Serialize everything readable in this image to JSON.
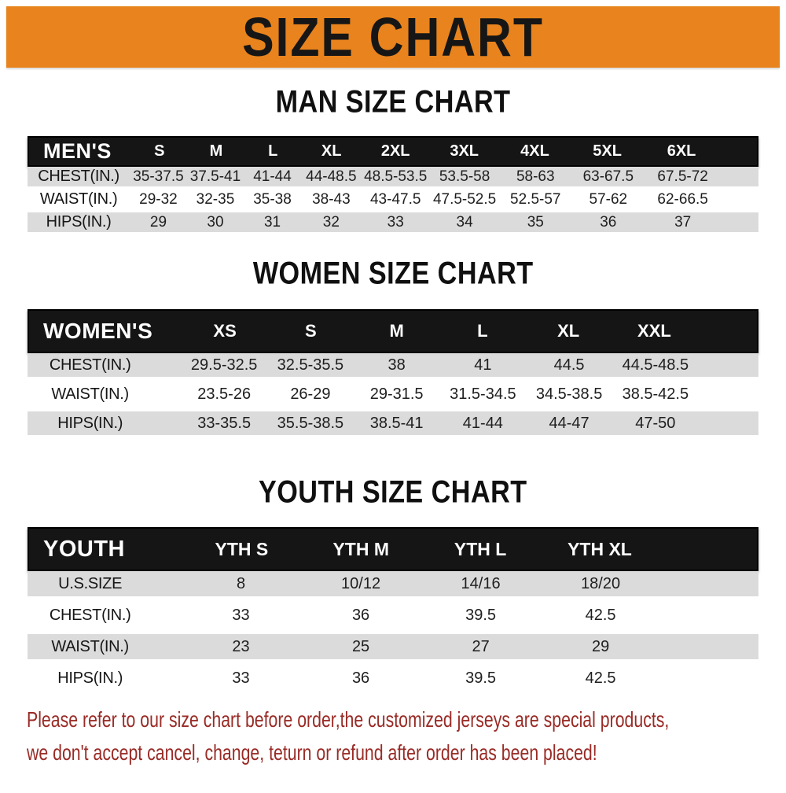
{
  "banner": {
    "title": "SIZE CHART"
  },
  "headings": {
    "men": "MAN SIZE CHART",
    "women": "WOMEN SIZE CHART",
    "youth": "YOUTH SIZE CHART"
  },
  "tables": {
    "men": {
      "label": "MEN'S",
      "columns": [
        "S",
        "M",
        "L",
        "XL",
        "2XL",
        "3XL",
        "4XL",
        "5XL",
        "6XL"
      ],
      "rows": [
        {
          "label": "CHEST(IN.)",
          "values": [
            "35-37.5",
            "37.5-41",
            "41-44",
            "44-48.5",
            "48.5-53.5",
            "53.5-58",
            "58-63",
            "63-67.5",
            "67.5-72"
          ]
        },
        {
          "label": "WAIST(IN.)",
          "values": [
            "29-32",
            "32-35",
            "35-38",
            "38-43",
            "43-47.5",
            "47.5-52.5",
            "52.5-57",
            "57-62",
            "62-66.5"
          ]
        },
        {
          "label": "HIPS(IN.)",
          "values": [
            "29",
            "30",
            "31",
            "32",
            "33",
            "34",
            "35",
            "36",
            "37"
          ]
        }
      ]
    },
    "women": {
      "label": "WOMEN'S",
      "columns": [
        "XS",
        "S",
        "M",
        "L",
        "XL",
        "XXL"
      ],
      "rows": [
        {
          "label": "CHEST(IN.)",
          "values": [
            "29.5-32.5",
            "32.5-35.5",
            "38",
            "41",
            "44.5",
            "44.5-48.5"
          ]
        },
        {
          "label": "WAIST(IN.)",
          "values": [
            "23.5-26",
            "26-29",
            "29-31.5",
            "31.5-34.5",
            "34.5-38.5",
            "38.5-42.5"
          ]
        },
        {
          "label": "HIPS(IN.)",
          "values": [
            "33-35.5",
            "35.5-38.5",
            "38.5-41",
            "41-44",
            "44-47",
            "47-50"
          ]
        }
      ]
    },
    "youth": {
      "label": "YOUTH",
      "columns": [
        "YTH S",
        "YTH M",
        "YTH L",
        "YTH XL"
      ],
      "rows": [
        {
          "label": "U.S.SIZE",
          "values": [
            "8",
            "10/12",
            "14/16",
            "18/20"
          ]
        },
        {
          "label": "CHEST(IN.)",
          "values": [
            "33",
            "36",
            "39.5",
            "42.5"
          ]
        },
        {
          "label": "WAIST(IN.)",
          "values": [
            "23",
            "25",
            "27",
            "29"
          ]
        },
        {
          "label": "HIPS(IN.)",
          "values": [
            "33",
            "36",
            "39.5",
            "42.5"
          ]
        }
      ]
    }
  },
  "footer": {
    "line1": "Please refer to our size chart before order,the customized jerseys are special products,",
    "line2": "we don't accept cancel, change, teturn or refund after order has been placed!"
  },
  "colors": {
    "banner_bg": "#E8831D",
    "bar_bg": "#151515",
    "row_gray": "#DBDBDB",
    "footer_red": "#992B26"
  }
}
